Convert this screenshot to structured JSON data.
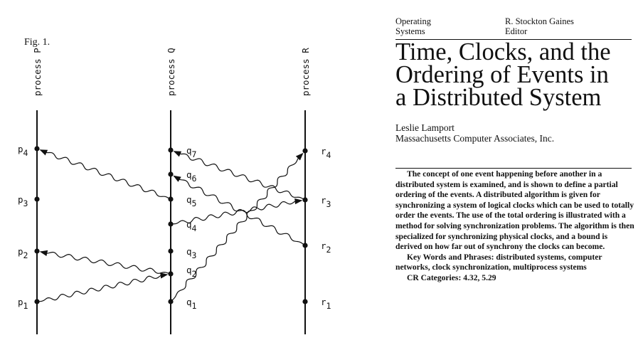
{
  "figure": {
    "label": "Fig. 1.",
    "processes": [
      {
        "label": "process P",
        "events": [
          "p1",
          "p2",
          "p3",
          "p4"
        ]
      },
      {
        "label": "process Q",
        "events": [
          "q1",
          "q2",
          "q3",
          "q4",
          "q5",
          "q6",
          "q7"
        ]
      },
      {
        "label": "process R",
        "events": [
          "r1",
          "r2",
          "r3",
          "r4"
        ]
      }
    ],
    "messages": [
      {
        "from": "p1",
        "to": "q2"
      },
      {
        "from": "q1",
        "to": "r4"
      },
      {
        "from": "q2",
        "to": "p2"
      },
      {
        "from": "q4",
        "to": "r3"
      },
      {
        "from": "q5",
        "to": "p4"
      },
      {
        "from": "r2",
        "to": "q6"
      },
      {
        "from": "r3",
        "to": "q7"
      }
    ]
  },
  "paper": {
    "section": [
      "Operating",
      "Systems"
    ],
    "editor": [
      "R. Stockton Gaines",
      "Editor"
    ],
    "title": [
      "Time, Clocks, and the",
      "Ordering of Events in",
      "a Distributed System"
    ],
    "author": "Leslie Lamport",
    "affiliation": "Massachusetts Computer Associates, Inc.",
    "abstract": "The concept of one event happening before another in a distributed system is examined, and is shown to define a partial ordering of the events. A distributed algorithm is given for synchronizing a system of logical clocks which can be used to totally order the events. The use of the total ordering is illustrated with a method for solving synchronization problems. The algorithm is then specialized for synchronizing physical clocks, and a bound is derived on how far out of synchrony the clocks can become.",
    "keywords": "Key Words and Phrases: distributed systems, computer networks, clock synchronization, multiprocess systems",
    "cr_categories": "CR Categories: 4.32, 5.29"
  }
}
